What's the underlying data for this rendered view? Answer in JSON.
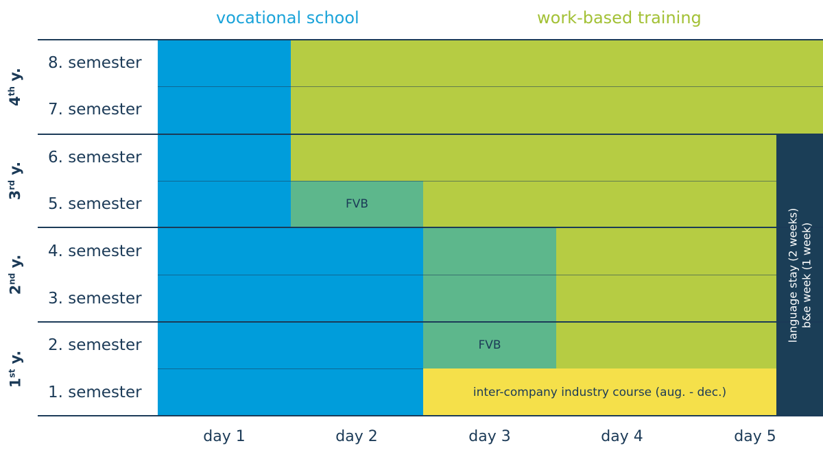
{
  "headers": {
    "vocational": "vocational school",
    "work": "work-based training"
  },
  "years": [
    {
      "num": "4",
      "sup": "th",
      "suffix": " y."
    },
    {
      "num": "3",
      "sup": "rd",
      "suffix": " y."
    },
    {
      "num": "2",
      "sup": "nd",
      "suffix": " y."
    },
    {
      "num": "1",
      "sup": "st",
      "suffix": " y."
    }
  ],
  "semesters": [
    "8. semester",
    "7. semester",
    "6. semester",
    "5. semester",
    "4. semester",
    "3. semester",
    "2. semester",
    "1. semester"
  ],
  "days": [
    "day 1",
    "day 2",
    "day 3",
    "day 4",
    "day 5"
  ],
  "labels": {
    "fvb_upper": "FVB",
    "fvb_lower": "FVB",
    "industry_course": "inter-company industry course (aug. - dec.)",
    "language_stay": "language stay (2 weeks)",
    "be_week": "b&e week (1 week)"
  },
  "colors": {
    "vocational_school": "#009ddb",
    "work_based_training": "#b6cc43",
    "fvb": "#5db78c",
    "industry_course": "#f5e04a",
    "language_stay": "#1b3e57"
  }
}
